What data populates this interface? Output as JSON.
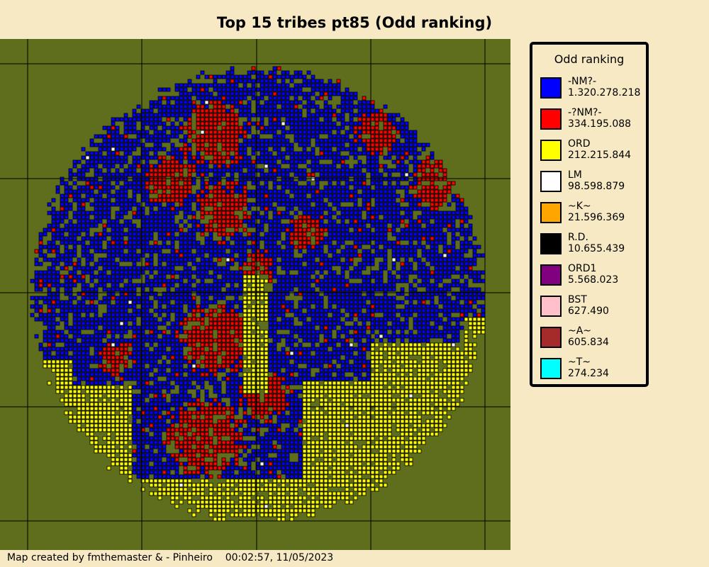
{
  "title": "Top 15 tribes pt85 (Odd ranking)",
  "legend": {
    "title": "Odd ranking",
    "items": [
      {
        "name": "-NM?-",
        "points": "1.320.278.218",
        "color": "#0000ff"
      },
      {
        "name": "-?NM?-",
        "points": "334.195.088",
        "color": "#ff0000"
      },
      {
        "name": "ORD",
        "points": "212.215.844",
        "color": "#ffff00"
      },
      {
        "name": "LM",
        "points": "98.598.879",
        "color": "#ffffff"
      },
      {
        "name": "~K~",
        "points": "21.596.369",
        "color": "#ffa500"
      },
      {
        "name": "R.D.",
        "points": "10.655.439",
        "color": "#000000"
      },
      {
        "name": "ORD1",
        "points": "5.568.023",
        "color": "#800080"
      },
      {
        "name": "BST",
        "points": "627.490",
        "color": "#ffc0cb"
      },
      {
        "name": "~A~",
        "points": "605.834",
        "color": "#a52a2a"
      },
      {
        "name": "~T~",
        "points": "274.234",
        "color": "#00ffff"
      }
    ]
  },
  "footer": {
    "credit": "Map created by fmthemaster & - Pinheiro",
    "timestamp": "00:02:57, 11/05/2023"
  }
}
